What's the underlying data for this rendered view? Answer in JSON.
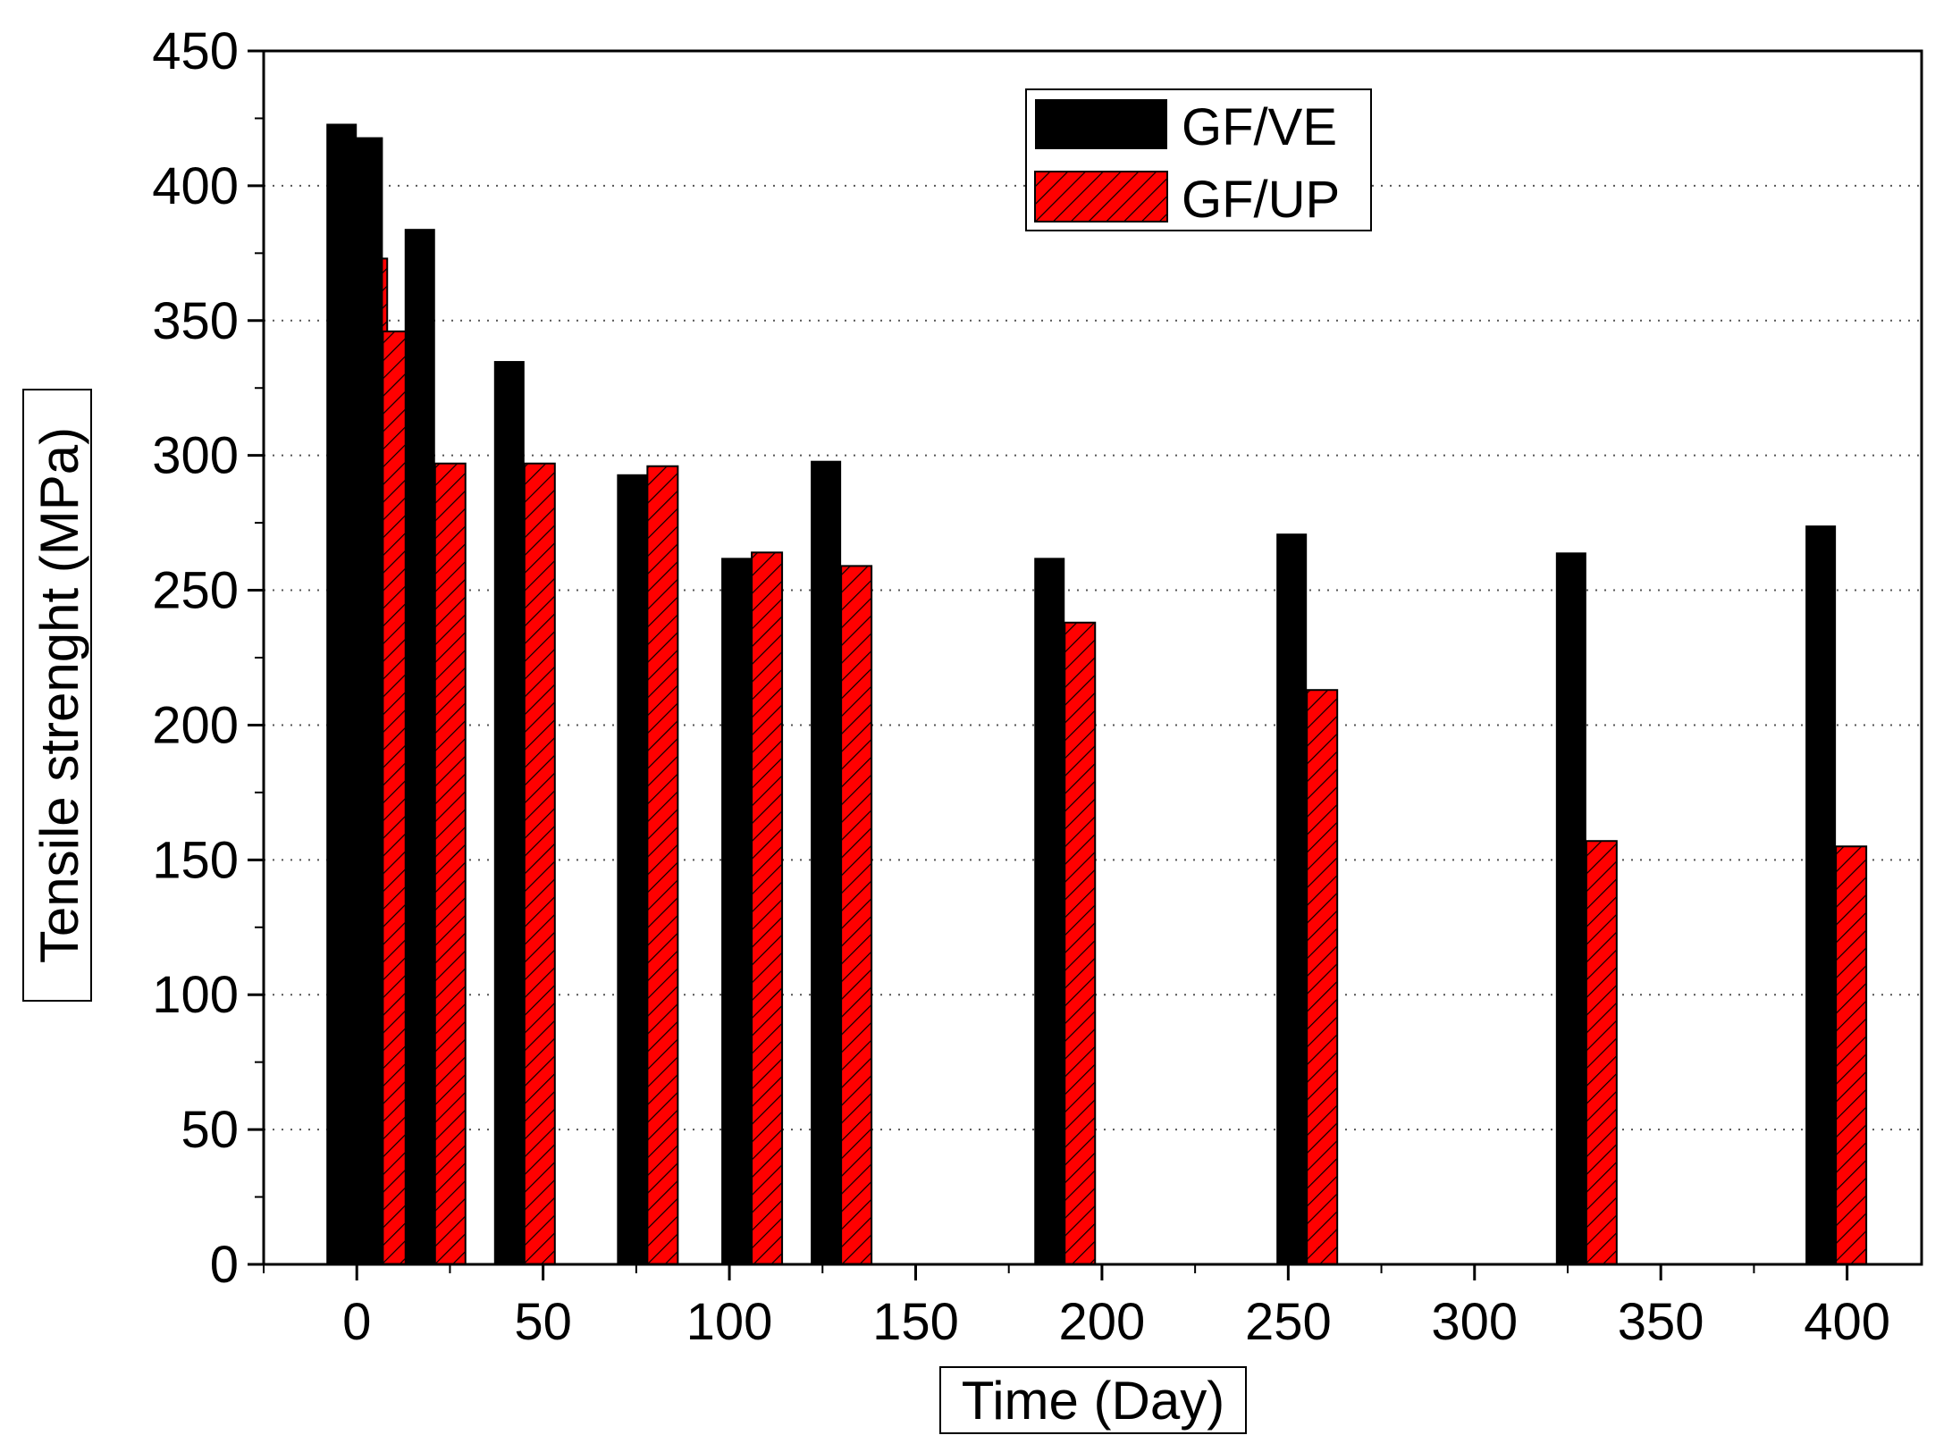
{
  "chart_data": {
    "type": "bar",
    "title": "",
    "xlabel": "Time (Day)",
    "ylabel": "Tensile strenght (MPa)",
    "xlim": [
      -25,
      420
    ],
    "ylim": [
      0,
      450
    ],
    "x_ticks": [
      0,
      50,
      100,
      150,
      200,
      250,
      300,
      350,
      400
    ],
    "y_ticks": [
      0,
      50,
      100,
      150,
      200,
      250,
      300,
      350,
      400,
      450
    ],
    "grid": "horizontal-dotted",
    "legend_position": "top-center",
    "x": [
      0,
      7,
      21,
      45,
      78,
      106,
      130,
      190,
      255,
      330,
      397
    ],
    "series": [
      {
        "name": "GF/VE",
        "color": "#000000",
        "pattern": "solid",
        "values": [
          423,
          418,
          384,
          335,
          293,
          262,
          298,
          262,
          271,
          264,
          274
        ]
      },
      {
        "name": "GF/UP",
        "color": "#ff0000",
        "pattern": "hatched",
        "values": [
          373,
          346,
          297,
          297,
          296,
          264,
          259,
          238,
          213,
          157,
          155
        ]
      }
    ]
  }
}
